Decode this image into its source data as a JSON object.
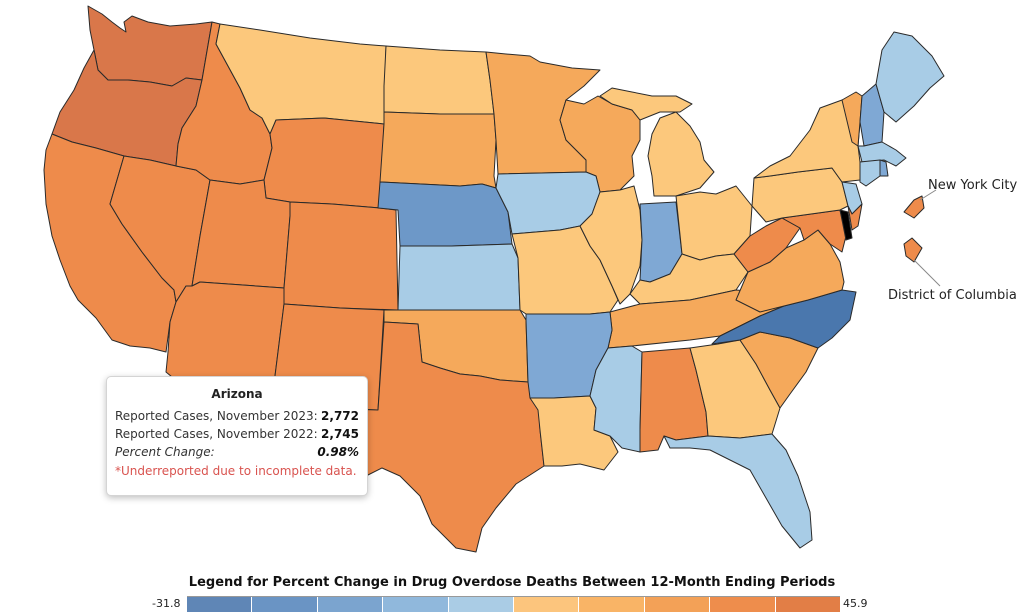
{
  "map": {
    "subject": "Percent Change in Drug Overdose Deaths Between 12-Month Ending Periods",
    "palette": {
      "dark_orange": "#d9774a",
      "orange": "#ee8b4b",
      "light_orange": "#f5a95b",
      "pale_orange": "#fcc87c",
      "pale_blue": "#a8cce6",
      "mid_blue": "#7fa8d4",
      "blue": "#6d98c8",
      "dark_blue": "#4a77ad"
    },
    "state_classes": {
      "WA": "dark_orange",
      "OR": "dark_orange",
      "CA": "orange",
      "NV": "orange",
      "ID": "orange",
      "UT": "orange",
      "AZ": "orange",
      "WY": "orange",
      "CO": "orange",
      "NM": "orange",
      "TX": "orange",
      "AL": "orange",
      "WV": "orange",
      "NJ_S": "orange",
      "MD": "orange",
      "DC": "orange",
      "NYC": "orange",
      "MT": "pale_orange",
      "ND": "pale_orange",
      "OH": "pale_orange",
      "PA": "pale_orange",
      "NY": "pale_orange",
      "MI_L": "pale_orange",
      "MI_U": "pale_orange",
      "IL": "pale_orange",
      "GA": "pale_orange",
      "LA": "pale_orange",
      "KY": "pale_orange",
      "MO": "pale_orange",
      "SD": "light_orange",
      "MN": "light_orange",
      "WI": "light_orange",
      "OK": "light_orange",
      "TN": "light_orange",
      "SC": "light_orange",
      "VA": "light_orange",
      "VT": "light_orange",
      "IA": "pale_blue",
      "KS": "pale_blue",
      "FL": "pale_blue",
      "MS": "pale_blue",
      "ME": "pale_blue",
      "CT": "pale_blue",
      "MA": "pale_blue",
      "NJ_N": "pale_blue",
      "IN": "mid_blue",
      "AR": "mid_blue",
      "NH": "mid_blue",
      "RI": "mid_blue",
      "NE": "blue",
      "NC": "dark_blue"
    },
    "callouts": {
      "nyc": "New York City",
      "dc": "District of Columbia"
    }
  },
  "tooltip": {
    "state": "Arizona",
    "rows": [
      {
        "label": "Reported Cases, November 2023:",
        "value": "2,772"
      },
      {
        "label": "Reported Cases, November 2022:",
        "value": "2,745"
      },
      {
        "label": "Percent Change:",
        "value": "0.98%"
      }
    ],
    "note": "*Underreported due to incomplete data."
  },
  "legend": {
    "title": "Legend for Percent Change in Drug Overdose Deaths Between 12-Month Ending Periods",
    "min": "-31.8",
    "max": "45.9",
    "bins": [
      "#5f86b6",
      "#6a94c4",
      "#7ba4cf",
      "#90b8dc",
      "#aacce5",
      "#fcc57d",
      "#f9b466",
      "#f3a157",
      "#ee8d4c",
      "#e27e46"
    ]
  }
}
